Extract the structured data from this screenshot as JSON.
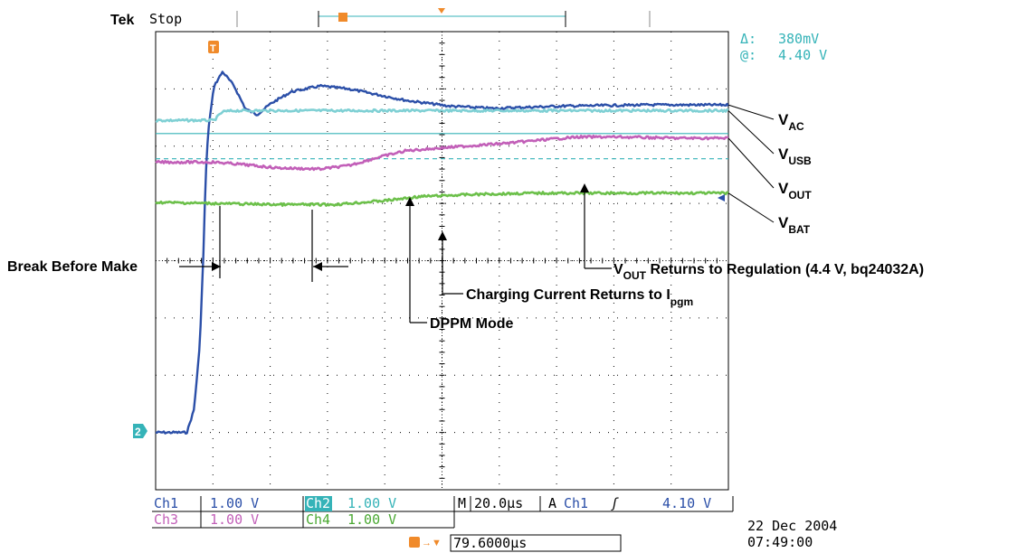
{
  "header": {
    "brand": "Tek",
    "status": "Stop"
  },
  "cursor_readout": {
    "delta_label": "Δ:",
    "delta_value": "380mV",
    "at_label": "@:",
    "at_value": "4.40 V"
  },
  "markers": {
    "trigger": "T",
    "channel2": "2"
  },
  "footer": {
    "ch1_label": "Ch1",
    "ch1_value": "1.00 V",
    "ch2_label": "Ch2",
    "ch2_value": "1.00 V",
    "ch3_label": "Ch3",
    "ch3_value": "1.00 V",
    "ch4_label": "Ch4",
    "ch4_value": "1.00 V",
    "timebase_label": "M",
    "timebase_value": "20.0µs",
    "trigger_mode": "A",
    "trigger_source": "Ch1",
    "trigger_slope": "ʃ",
    "trigger_level": "4.10 V",
    "position_value": "79.6000µs",
    "date": "22 Dec  2004",
    "time": "07:49:00"
  },
  "colors": {
    "ch1": "#2b4fa8",
    "ch2": "#7fd0d4",
    "ch3": "#c25fb8",
    "ch4": "#6cc04a",
    "cursor": "#35b3b8",
    "trigger": "#f08a2a",
    "grid": "#000000"
  },
  "chart_data": {
    "type": "line",
    "title": "",
    "xlabel": "",
    "ylabel": "",
    "x_unit": "µs",
    "y_unit": "V",
    "xlim": [
      -12.4,
      187.6
    ],
    "ylim": [
      -4,
      4
    ],
    "grid": true,
    "series": [
      {
        "name": "V_AC",
        "color": "#2b4fa8",
        "points": [
          [
            -12.4,
            -3.0
          ],
          [
            -1.5,
            -3.0
          ],
          [
            1.0,
            -2.6
          ],
          [
            3.0,
            -1.5
          ],
          [
            4.2,
            0.0
          ],
          [
            5.0,
            1.4
          ],
          [
            6.0,
            2.3
          ],
          [
            8.0,
            3.05
          ],
          [
            11.0,
            3.3
          ],
          [
            15.0,
            3.05
          ],
          [
            19.0,
            2.65
          ],
          [
            23.0,
            2.55
          ],
          [
            28.0,
            2.75
          ],
          [
            35.0,
            2.95
          ],
          [
            45.0,
            3.05
          ],
          [
            55.0,
            3.0
          ],
          [
            65.0,
            2.9
          ],
          [
            75.0,
            2.8
          ],
          [
            90.0,
            2.7
          ],
          [
            105.0,
            2.66
          ],
          [
            130.0,
            2.7
          ],
          [
            160.0,
            2.72
          ],
          [
            187.6,
            2.72
          ]
        ]
      },
      {
        "name": "V_USB",
        "color": "#7fd0d4",
        "points": [
          [
            -12.4,
            2.45
          ],
          [
            8.0,
            2.45
          ],
          [
            11.0,
            2.6
          ],
          [
            15.0,
            2.62
          ],
          [
            25.0,
            2.62
          ],
          [
            187.6,
            2.62
          ]
        ]
      },
      {
        "name": "V_OUT",
        "color": "#c25fb8",
        "points": [
          [
            -12.4,
            1.72
          ],
          [
            8.0,
            1.72
          ],
          [
            18.0,
            1.68
          ],
          [
            30.0,
            1.62
          ],
          [
            45.0,
            1.6
          ],
          [
            55.0,
            1.66
          ],
          [
            65.0,
            1.8
          ],
          [
            75.0,
            1.92
          ],
          [
            90.0,
            1.98
          ],
          [
            110.0,
            2.05
          ],
          [
            125.0,
            2.12
          ],
          [
            135.0,
            2.16
          ],
          [
            150.0,
            2.16
          ],
          [
            170.0,
            2.14
          ],
          [
            187.6,
            2.14
          ]
        ]
      },
      {
        "name": "V_BAT",
        "color": "#6cc04a",
        "points": [
          [
            -12.4,
            1.02
          ],
          [
            8.0,
            1.0
          ],
          [
            30.0,
            0.98
          ],
          [
            50.0,
            0.98
          ],
          [
            68.0,
            1.05
          ],
          [
            80.0,
            1.12
          ],
          [
            100.0,
            1.16
          ],
          [
            120.0,
            1.18
          ],
          [
            150.0,
            1.18
          ],
          [
            187.6,
            1.18
          ]
        ]
      }
    ],
    "cursor_levels": [
      2.22,
      1.78
    ],
    "labels": [
      {
        "base": "V",
        "sub": "AC"
      },
      {
        "base": "V",
        "sub": "USB"
      },
      {
        "base": "V",
        "sub": "OUT"
      },
      {
        "base": "V",
        "sub": "BAT"
      }
    ],
    "annotations": [
      {
        "text": "Break Before Make"
      },
      {
        "text": "DPPM Mode"
      },
      {
        "text": "Charging Current Returns to I",
        "sub": "pgm"
      },
      {
        "pre": "V",
        "sub": "OUT",
        "text": " Returns to Regulation (4.4 V, bq24032A)"
      }
    ]
  }
}
